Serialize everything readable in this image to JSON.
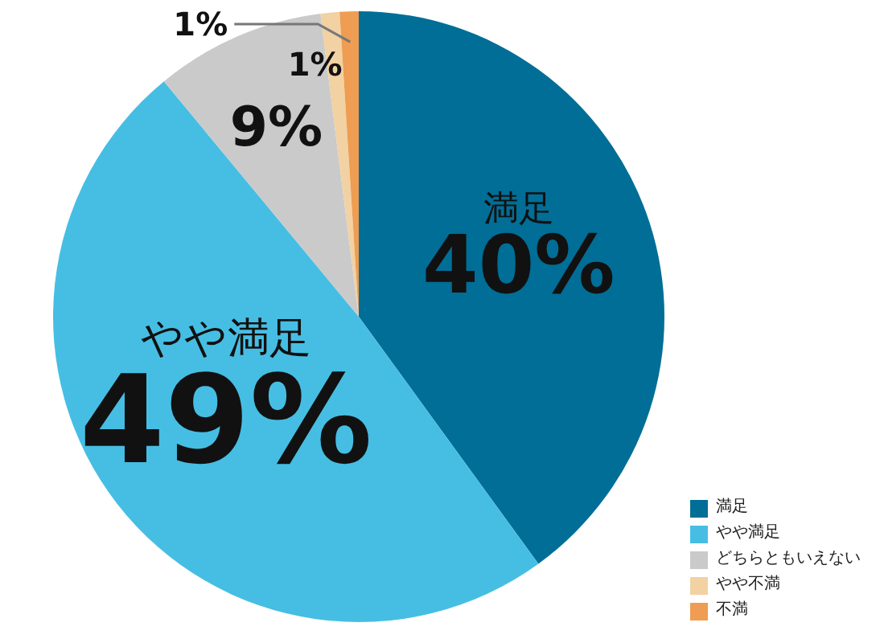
{
  "chart_data": {
    "type": "pie",
    "categories": [
      "満足",
      "やや満足",
      "どちらともいえない",
      "やや不満",
      "不満"
    ],
    "values": [
      40,
      49,
      9,
      1,
      1
    ],
    "value_labels": [
      "40%",
      "49%",
      "9%",
      "1%",
      "1%"
    ],
    "colors": [
      "#006e96",
      "#46bee3",
      "#cacaca",
      "#f2d1a2",
      "#ee9d52"
    ],
    "legend": "bottom right"
  }
}
